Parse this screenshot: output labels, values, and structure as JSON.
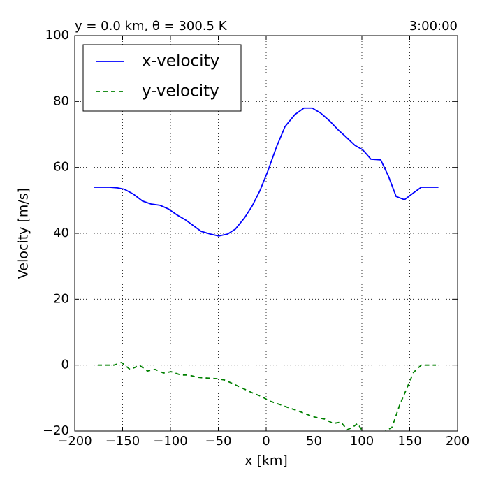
{
  "chart_data": {
    "type": "line",
    "title_left": "y = 0.0 km, θ = 300.5 K",
    "title_right": "3:00:00",
    "xlabel": "x [km]",
    "ylabel": "Velocity [m/s]",
    "xlim": [
      -200,
      200
    ],
    "ylim": [
      -20,
      100
    ],
    "xticks": [
      {
        "value": -200,
        "label": "−200"
      },
      {
        "value": -150,
        "label": "−150"
      },
      {
        "value": -100,
        "label": "−100"
      },
      {
        "value": -50,
        "label": "−50"
      },
      0,
      50,
      100,
      150,
      200
    ],
    "yticks": [
      {
        "value": -20,
        "label": "−20"
      },
      0,
      20,
      40,
      60,
      80,
      100
    ],
    "grid": true,
    "legend": "upper left",
    "series": [
      {
        "name": "x-velocity",
        "color": "#0000ff",
        "style": "solid",
        "x": [
          -180,
          -163.5,
          -155.5,
          -148.2,
          -138.7,
          -129.2,
          -120.4,
          -110.9,
          -102.2,
          -92.7,
          -83.9,
          -75.9,
          -67.9,
          -58.4,
          -49.6,
          -40.1,
          -32.1,
          -22.6,
          -14.6,
          -6.6,
          1.5,
          10.9,
          19.7,
          29.9,
          39.4,
          48.2,
          56.9,
          66.4,
          75.2,
          81.8,
          92.7,
          100.7,
          109.5,
          119.7,
          127.7,
          135.8,
          144.5,
          154,
          162,
          180
        ],
        "values": [
          54,
          54,
          53.8,
          53.4,
          51.9,
          49.8,
          48.9,
          48.5,
          47.4,
          45.5,
          44,
          42.3,
          40.6,
          39.8,
          39.2,
          39.8,
          41.3,
          44.7,
          48.3,
          52.9,
          58.7,
          66.3,
          72.4,
          76,
          78,
          78,
          76.5,
          74.1,
          71.4,
          69.7,
          66.7,
          65.4,
          62.5,
          62.3,
          57.4,
          51.2,
          50.2,
          52.3,
          54,
          54
        ]
      },
      {
        "name": "y-velocity",
        "color": "#008000",
        "style": "dashed",
        "x": [
          -175.9,
          -159.1,
          -151.1,
          -142.3,
          -132.1,
          -124.1,
          -116.1,
          -107.3,
          -99.3,
          -89.1,
          -81,
          -71.5,
          -63.5,
          -51.8,
          -43.8,
          -35,
          -24.8,
          -15.3,
          -4.4,
          3.6,
          14.6,
          24.1,
          33.6,
          43.1,
          51.1,
          61.3,
          70.1,
          78.1,
          84.7,
          90.5,
          95.6,
          105.1,
          116,
          131.4,
          139.4,
          148.2,
          154,
          162,
          177.4
        ],
        "values": [
          0,
          0,
          0.8,
          -1.3,
          -0.1,
          -1.8,
          -1.3,
          -2.4,
          -2,
          -3,
          -3,
          -3.7,
          -3.9,
          -4.1,
          -4.5,
          -5.6,
          -7,
          -8.3,
          -9.6,
          -10.9,
          -12,
          -13,
          -13.9,
          -15,
          -15.8,
          -16.4,
          -17.7,
          -17.3,
          -19.6,
          -18.8,
          -17.7,
          -22,
          -21.5,
          -18.9,
          -12.2,
          -6.2,
          -2.2,
          0,
          0
        ]
      }
    ]
  }
}
